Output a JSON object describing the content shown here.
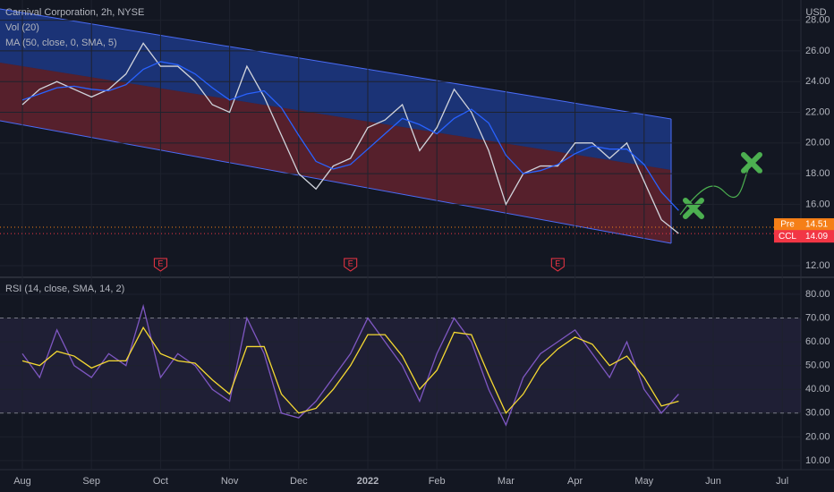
{
  "chart_data": [
    {
      "type": "line",
      "title": "Carnival Corporation, 2h, NYSE",
      "subtitle": "Vol (20)",
      "currency": "USD",
      "categories": [
        "Aug",
        null,
        null,
        null,
        "Sep",
        null,
        null,
        null,
        "Oct",
        null,
        null,
        null,
        "Nov",
        null,
        null,
        null,
        "Dec",
        null,
        null,
        null,
        "2022",
        null,
        null,
        null,
        "Feb",
        null,
        null,
        null,
        "Mar",
        null,
        null,
        null,
        "Apr",
        null,
        null,
        null,
        "May",
        null,
        null,
        null,
        "Jun",
        null,
        null,
        null,
        "Jul"
      ],
      "series": [
        {
          "name": "Carnival Corporation, 2h, NYSE",
          "color": "#d1d4dc",
          "values": [
            22.5,
            23.5,
            24,
            23.5,
            23,
            23.5,
            24.5,
            26.5,
            25,
            25,
            24,
            22.5,
            22,
            25,
            23,
            20.5,
            18,
            17,
            18.5,
            19,
            21,
            21.5,
            22.5,
            19.5,
            21,
            23.5,
            22,
            19.5,
            16,
            18,
            18.5,
            18.5,
            20,
            20,
            19,
            20,
            17.5,
            15,
            14.1,
            null,
            null,
            null,
            null,
            null,
            null
          ]
        },
        {
          "name": "MA (50, close, 0, SMA, 5)",
          "color": "#2962ff",
          "values": [
            22.8,
            23.2,
            23.6,
            23.7,
            23.5,
            23.4,
            23.8,
            24.8,
            25.3,
            25.1,
            24.5,
            23.6,
            22.8,
            23.2,
            23.4,
            22.3,
            20.5,
            18.8,
            18.3,
            18.6,
            19.6,
            20.6,
            21.6,
            21.2,
            20.6,
            21.6,
            22.2,
            21.3,
            19.2,
            18,
            18.2,
            18.6,
            19.3,
            19.8,
            19.6,
            19.6,
            18.6,
            16.8,
            15.6,
            null,
            null,
            null,
            null,
            null,
            null
          ]
        }
      ],
      "ylim": [
        11.36,
        29.32
      ],
      "yticks": [
        {
          "value": 12,
          "label": "12.00"
        },
        {
          "value": 16,
          "label": "16.00"
        },
        {
          "value": 18,
          "label": "18.00"
        },
        {
          "value": 20,
          "label": "20.00"
        },
        {
          "value": 22,
          "label": "22.00"
        },
        {
          "value": 24,
          "label": "24.00"
        },
        {
          "value": 26,
          "label": "26.00"
        },
        {
          "value": 28,
          "label": "28.00"
        }
      ],
      "price_labels": [
        {
          "name": "Pre",
          "value": 14.51,
          "color": "#f57f17"
        },
        {
          "name": "CCL",
          "value": 14.09,
          "color": "#f23645"
        }
      ],
      "events": [
        {
          "label": "E",
          "x": 8
        },
        {
          "label": "E",
          "x": 19
        },
        {
          "label": "E",
          "x": 31
        }
      ],
      "grid": true
    },
    {
      "type": "line",
      "title": "RSI (14, close, SMA, 14, 2)",
      "categories": [
        "Aug",
        null,
        null,
        null,
        "Sep",
        null,
        null,
        null,
        "Oct",
        null,
        null,
        null,
        "Nov",
        null,
        null,
        null,
        "Dec",
        null,
        null,
        null,
        "2022",
        null,
        null,
        null,
        "Feb",
        null,
        null,
        null,
        "Mar",
        null,
        null,
        null,
        "Apr",
        null,
        null,
        null,
        "May",
        null,
        null,
        null,
        "Jun",
        null,
        null,
        null,
        "Jul"
      ],
      "series": [
        {
          "color": "#7e57c2",
          "values": [
            55,
            45,
            65,
            50,
            45,
            55,
            50,
            75,
            45,
            55,
            50,
            40,
            35,
            70,
            55,
            30,
            28,
            35,
            45,
            55,
            70,
            60,
            50,
            35,
            55,
            70,
            60,
            40,
            25,
            45,
            55,
            60,
            65,
            55,
            45,
            60,
            40,
            30,
            38,
            null,
            null,
            null,
            null,
            null,
            null
          ]
        },
        {
          "color": "#f5d932",
          "values": [
            52,
            50,
            56,
            54,
            49,
            52,
            52,
            66,
            55,
            52,
            51,
            44,
            38,
            58,
            58,
            38,
            30,
            32,
            40,
            50,
            63,
            63,
            54,
            40,
            48,
            64,
            63,
            46,
            30,
            38,
            50,
            57,
            62,
            59,
            50,
            54,
            45,
            33,
            35,
            null,
            null,
            null,
            null,
            null,
            null
          ]
        }
      ],
      "ylim": [
        6.2,
        86.4
      ],
      "yticks": [
        {
          "value": 10,
          "label": "10.00"
        },
        {
          "value": 20,
          "label": "20.00"
        },
        {
          "value": 30,
          "label": "30.00"
        },
        {
          "value": 40,
          "label": "40.00"
        },
        {
          "value": 50,
          "label": "50.00"
        },
        {
          "value": 60,
          "label": "60.00"
        },
        {
          "value": 70,
          "label": "70.00"
        },
        {
          "value": 80,
          "label": "80.00"
        }
      ],
      "band": [
        30,
        70
      ],
      "grid": true
    }
  ]
}
